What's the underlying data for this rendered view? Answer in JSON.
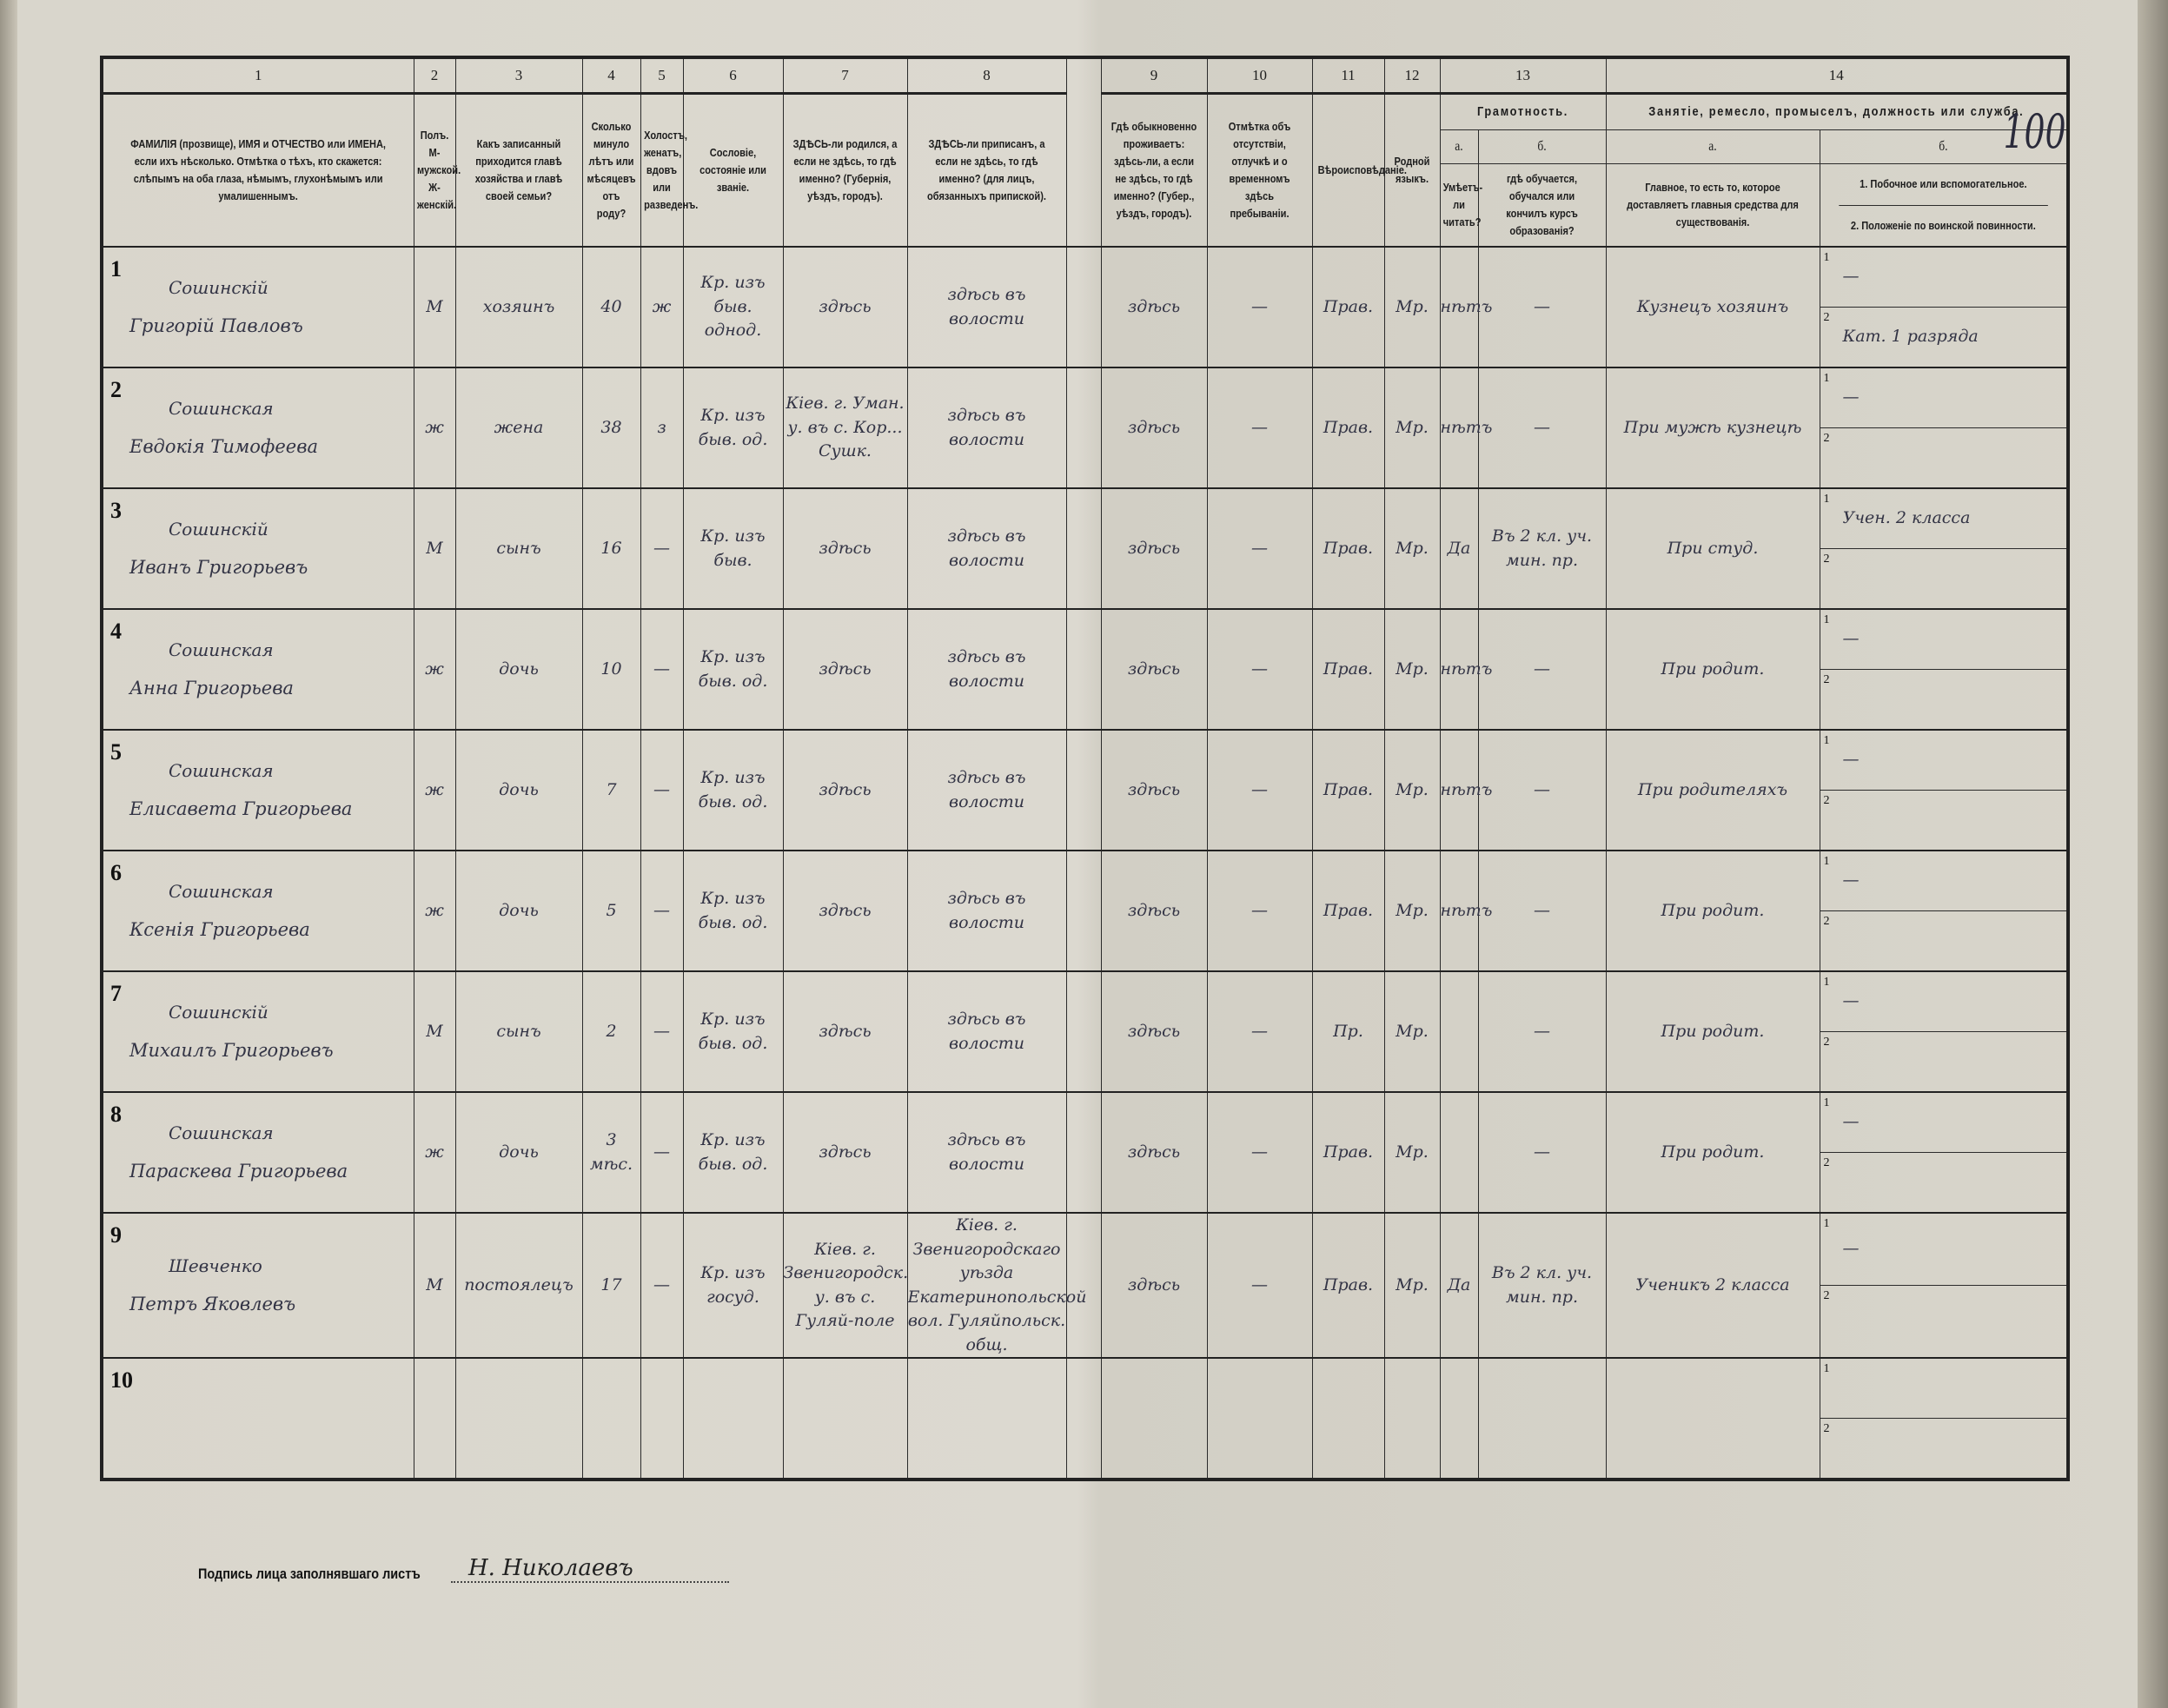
{
  "sheet_number": "100",
  "header": {
    "columns": [
      {
        "num": "1",
        "text": "ФАМИЛІЯ (прозвище), ИМЯ и ОТЧЕСТВО или ИМЕНА, если ихъ нѣсколько. Отмѣтка о тѣхъ, кто скажется: слѣпымъ на оба глаза, нѣмымъ, глухонѣмымъ или умалишеннымъ."
      },
      {
        "num": "2",
        "text": "Полъ. М-мужской. Ж-женскій."
      },
      {
        "num": "3",
        "text": "Какъ записанный приходится главѣ хозяйства и главѣ своей семьи?"
      },
      {
        "num": "4",
        "text": "Сколько минуло лѣтъ или мѣсяцевъ отъ роду?"
      },
      {
        "num": "5",
        "text": "Холостъ, женатъ, вдовъ или разведенъ."
      },
      {
        "num": "6",
        "text": "Сословіе, состояніе или званіе."
      },
      {
        "num": "7",
        "text": "ЗДѢСЬ-ли родился, а если не здѣсь, то гдѣ именно? (Губернія, уѣздъ, городъ)."
      },
      {
        "num": "8",
        "text": "ЗДѢСЬ-ли приписанъ, а если не здѣсь, то гдѣ именно? (для лицъ, обязанныхъ припиской)."
      },
      {
        "num": "9",
        "text": "Гдѣ обыкновенно проживаетъ: здѣсь-ли, а если не здѣсь, то гдѣ именно? (Губер., уѣздъ, городъ)."
      },
      {
        "num": "10",
        "text": "Отмѣтка объ отсутствіи, отлучкѣ и о временномъ здѣсь пребываніи."
      },
      {
        "num": "11",
        "text": "Вѣроисповѣданіе."
      },
      {
        "num": "12",
        "text": "Родной языкъ."
      }
    ],
    "col13": {
      "num": "13",
      "group": "Грамотность.",
      "a": "а.",
      "b": "б.",
      "a_text": "Умѣетъ-ли читать?",
      "b_text": "гдѣ обучается, обучался или кончилъ курсъ образованія?"
    },
    "col14": {
      "num": "14",
      "group": "Занятіе, ремесло, промыселъ, должность или служба.",
      "a": "а.",
      "b": "б.",
      "a_text": "Главное, то есть то, которое доставляетъ главныя средства для существованія.",
      "b1_text": "1. Побочное или вспомогательное.",
      "b2_text": "2. Положеніе по воинской повинности."
    }
  },
  "rows": [
    {
      "n": "1",
      "surname": "Сошинскій",
      "given": "Григорій Павловъ",
      "sex": "М",
      "relation": "хозяинъ",
      "age": "40",
      "marital": "ж",
      "estate": "Кр. изъ быв. однод.",
      "born": "здѣсь",
      "registered": "здѣсь въ волости",
      "resides": "здѣсь",
      "absence": "—",
      "religion": "Прав.",
      "language": "Мр.",
      "reads": "нѣтъ",
      "education": "—",
      "occupation": "Кузнецъ хозяинъ",
      "secondary": "—",
      "military": "Кат. 1 разряда"
    },
    {
      "n": "2",
      "surname": "Сошинская",
      "given": "Евдокія Тимофеева",
      "sex": "ж",
      "relation": "жена",
      "age": "38",
      "marital": "з",
      "estate": "Кр. изъ быв. од.",
      "born": "Кіев. г. Уман. у. въ с. Кор... Сушк.",
      "registered": "здѣсь въ волости",
      "resides": "здѣсь",
      "absence": "—",
      "religion": "Прав.",
      "language": "Мр.",
      "reads": "нѣтъ",
      "education": "—",
      "occupation": "При мужѣ кузнецѣ",
      "secondary": "—",
      "military": ""
    },
    {
      "n": "3",
      "surname": "Сошинскій",
      "given": "Иванъ Григорьевъ",
      "sex": "М",
      "relation": "сынъ",
      "age": "16",
      "marital": "—",
      "estate": "Кр. изъ быв.",
      "born": "здѣсь",
      "registered": "здѣсь въ волости",
      "resides": "здѣсь",
      "absence": "—",
      "religion": "Прав.",
      "language": "Мр.",
      "reads": "Да",
      "education": "Въ 2 кл. уч. мин. пр.",
      "occupation": "При студ.",
      "secondary": "Учен. 2 класса",
      "military": ""
    },
    {
      "n": "4",
      "surname": "Сошинская",
      "given": "Анна Григорьева",
      "sex": "ж",
      "relation": "дочь",
      "age": "10",
      "marital": "—",
      "estate": "Кр. изъ быв. од.",
      "born": "здѣсь",
      "registered": "здѣсь въ волости",
      "resides": "здѣсь",
      "absence": "—",
      "religion": "Прав.",
      "language": "Мр.",
      "reads": "нѣтъ",
      "education": "—",
      "occupation": "При родит.",
      "secondary": "—",
      "military": ""
    },
    {
      "n": "5",
      "surname": "Сошинская",
      "given": "Елисавета Григорьева",
      "sex": "ж",
      "relation": "дочь",
      "age": "7",
      "marital": "—",
      "estate": "Кр. изъ быв. од.",
      "born": "здѣсь",
      "registered": "здѣсь въ волости",
      "resides": "здѣсь",
      "absence": "—",
      "religion": "Прав.",
      "language": "Мр.",
      "reads": "нѣтъ",
      "education": "—",
      "occupation": "При родителяхъ",
      "secondary": "—",
      "military": ""
    },
    {
      "n": "6",
      "surname": "Сошинская",
      "given": "Ксенія Григорьева",
      "sex": "ж",
      "relation": "дочь",
      "age": "5",
      "marital": "—",
      "estate": "Кр. изъ быв. од.",
      "born": "здѣсь",
      "registered": "здѣсь въ волости",
      "resides": "здѣсь",
      "absence": "—",
      "religion": "Прав.",
      "language": "Мр.",
      "reads": "нѣтъ",
      "education": "—",
      "occupation": "При родит.",
      "secondary": "—",
      "military": ""
    },
    {
      "n": "7",
      "surname": "Сошинскій",
      "given": "Михаилъ Григорьевъ",
      "sex": "М",
      "relation": "сынъ",
      "age": "2",
      "marital": "—",
      "estate": "Кр. изъ быв. од.",
      "born": "здѣсь",
      "registered": "здѣсь въ волости",
      "resides": "здѣсь",
      "absence": "—",
      "religion": "Пр.",
      "language": "Мр.",
      "reads": "",
      "education": "—",
      "occupation": "При родит.",
      "secondary": "—",
      "military": ""
    },
    {
      "n": "8",
      "surname": "Сошинская",
      "given": "Параскева Григорьева",
      "sex": "ж",
      "relation": "дочь",
      "age": "3 мѣс.",
      "marital": "—",
      "estate": "Кр. изъ быв. од.",
      "born": "здѣсь",
      "registered": "здѣсь въ волости",
      "resides": "здѣсь",
      "absence": "—",
      "religion": "Прав.",
      "language": "Мр.",
      "reads": "",
      "education": "—",
      "occupation": "При родит.",
      "secondary": "—",
      "military": ""
    },
    {
      "n": "9",
      "surname": "Шевченко",
      "given": "Петръ Яковлевъ",
      "sex": "М",
      "relation": "постоялецъ",
      "age": "17",
      "marital": "—",
      "estate": "Кр. изъ госуд.",
      "born": "Кіев. г. Звенигородск. у. въ с. Гуляй-поле",
      "registered": "Кіев. г. Звенигородскаго уѣзда Екатеринопольской вол. Гуляйпольск. общ.",
      "resides": "здѣсь",
      "absence": "—",
      "religion": "Прав.",
      "language": "Мр.",
      "reads": "Да",
      "education": "Въ 2 кл. уч. мин. пр.",
      "occupation": "Ученикъ 2 класса",
      "secondary": "—",
      "military": ""
    },
    {
      "n": "10",
      "surname": "",
      "given": "",
      "sex": "",
      "relation": "",
      "age": "",
      "marital": "",
      "estate": "",
      "born": "",
      "registered": "",
      "resides": "",
      "absence": "",
      "religion": "",
      "language": "",
      "reads": "",
      "education": "",
      "occupation": "",
      "secondary": "",
      "military": ""
    }
  ],
  "footer": {
    "label": "Подпись лица заполнявшаго листъ",
    "signature": "Н. Николаевъ"
  }
}
